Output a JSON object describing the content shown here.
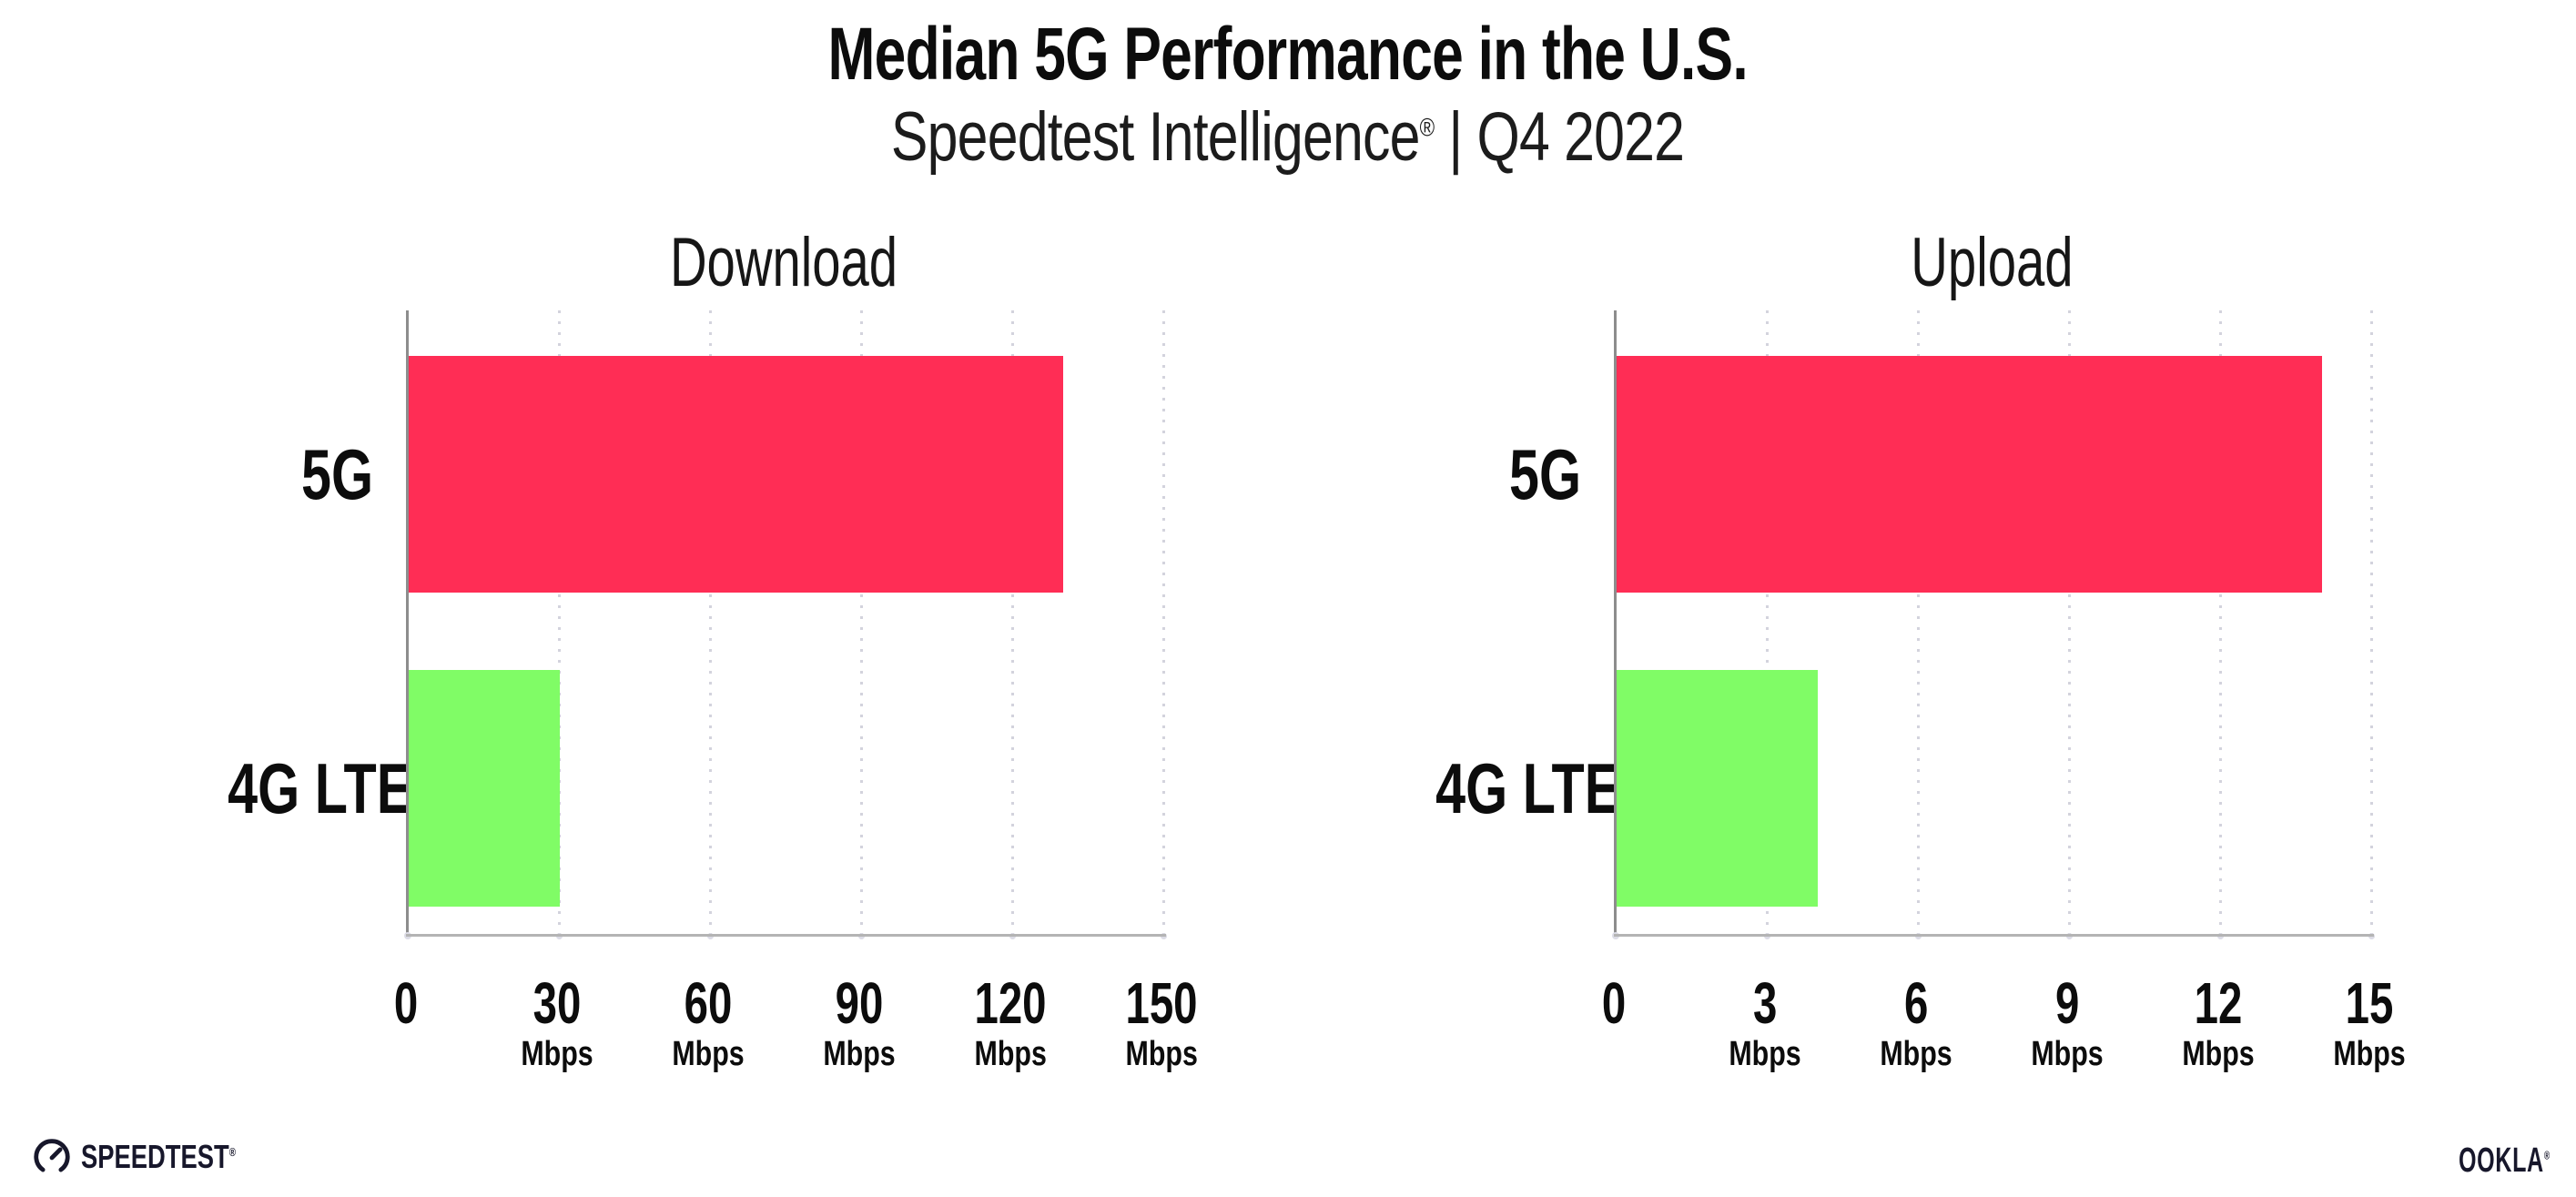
{
  "header": {
    "title": "Median 5G Performance in the U.S.",
    "subtitle_brand": "Speedtest Intelligence",
    "subtitle_reg": "®",
    "subtitle_quarter": " | Q4 2022"
  },
  "chart_data": [
    {
      "type": "bar",
      "orientation": "horizontal",
      "title": "Download",
      "categories": [
        "5G",
        "4G LTE"
      ],
      "values": [
        130,
        30
      ],
      "unit": "Mbps",
      "xlim": [
        0,
        150
      ],
      "ticks": [
        0,
        30,
        60,
        90,
        120,
        150
      ],
      "bar_colors": [
        "#ff2d55",
        "#80fc66"
      ],
      "grid": "dotted-vertical",
      "legend": "none"
    },
    {
      "type": "bar",
      "orientation": "horizontal",
      "title": "Upload",
      "categories": [
        "5G",
        "4G LTE"
      ],
      "values": [
        14,
        4
      ],
      "unit": "Mbps",
      "xlim": [
        0,
        15
      ],
      "ticks": [
        0,
        3,
        6,
        9,
        12,
        15
      ],
      "bar_colors": [
        "#ff2d55",
        "#80fc66"
      ],
      "grid": "dotted-vertical",
      "legend": "none"
    }
  ],
  "footer": {
    "speedtest_label": "SPEEDTEST",
    "speedtest_reg": "®",
    "ookla_label": "OOKLA",
    "ookla_reg": "®"
  },
  "colors": {
    "bar_5g": "#ff2d55",
    "bar_4g_lte": "#80fc66",
    "axis_y": "#8d8d8d",
    "axis_x": "#b4b4b4",
    "gridline": "#d3d3dd",
    "text": "#0c0c0c",
    "logo": "#17172b"
  }
}
